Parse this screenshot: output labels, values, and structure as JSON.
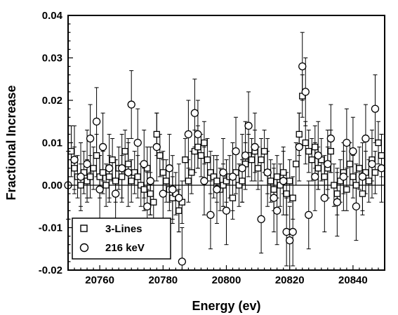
{
  "chart_data": {
    "type": "scatter",
    "xlabel": "Energy (ev)",
    "ylabel": "Fractional Increase",
    "xlim": [
      20750,
      20850
    ],
    "ylim": [
      -0.02,
      0.04
    ],
    "x_ticks": [
      "20760",
      "20780",
      "20800",
      "20820",
      "20840"
    ],
    "y_ticks": [
      "-0.02",
      "-0.01",
      "0.00",
      "0.01",
      "0.02",
      "0.03",
      "0.04"
    ],
    "zero_line": true,
    "legend_position": "bottom-left",
    "series": [
      {
        "name": "3-Lines",
        "marker": "open-square",
        "points": [
          [
            20751,
            0.008,
            0.006
          ],
          [
            20752,
            0.004,
            0.005
          ],
          [
            20753,
            0.002,
            0.005
          ],
          [
            20754,
            0.0,
            0.005
          ],
          [
            20755,
            0.003,
            0.005
          ],
          [
            20756,
            0.001,
            0.005
          ],
          [
            20757,
            0.002,
            0.005
          ],
          [
            20758,
            0.004,
            0.005
          ],
          [
            20759,
            0.007,
            0.005
          ],
          [
            20760,
            0.002,
            0.005
          ],
          [
            20761,
            0.003,
            0.005
          ],
          [
            20762,
            0.0,
            0.005
          ],
          [
            20763,
            0.002,
            0.005
          ],
          [
            20764,
            0.006,
            0.005
          ],
          [
            20765,
            0.001,
            0.005
          ],
          [
            20766,
            0.004,
            0.005
          ],
          [
            20767,
            0.002,
            0.005
          ],
          [
            20768,
            0.008,
            0.005
          ],
          [
            20769,
            0.005,
            0.005
          ],
          [
            20770,
            0.001,
            0.005
          ],
          [
            20771,
            0.003,
            0.005
          ],
          [
            20772,
            0.002,
            0.005
          ],
          [
            20773,
            0.0,
            0.005
          ],
          [
            20774,
            -0.001,
            0.005
          ],
          [
            20775,
            0.004,
            0.005
          ],
          [
            20776,
            -0.002,
            0.005
          ],
          [
            20777,
            -0.004,
            0.005
          ],
          [
            20778,
            0.012,
            0.005
          ],
          [
            20779,
            0.007,
            0.005
          ],
          [
            20780,
            0.003,
            0.005
          ],
          [
            20781,
            0.001,
            0.005
          ],
          [
            20782,
            -0.001,
            0.005
          ],
          [
            20783,
            -0.003,
            0.005
          ],
          [
            20784,
            -0.002,
            0.005
          ],
          [
            20785,
            -0.006,
            0.005
          ],
          [
            20786,
            -0.004,
            0.005
          ],
          [
            20787,
            0.006,
            0.005
          ],
          [
            20788,
            0.001,
            0.005
          ],
          [
            20789,
            0.003,
            0.005
          ],
          [
            20790,
            0.008,
            0.005
          ],
          [
            20791,
            0.009,
            0.005
          ],
          [
            20792,
            0.007,
            0.005
          ],
          [
            20793,
            0.01,
            0.005
          ],
          [
            20794,
            0.006,
            0.005
          ],
          [
            20795,
            0.003,
            0.005
          ],
          [
            20796,
            0.002,
            0.005
          ],
          [
            20797,
            0.001,
            0.005
          ],
          [
            20798,
            -0.001,
            0.005
          ],
          [
            20799,
            0.0,
            0.005
          ],
          [
            20800,
            0.001,
            0.005
          ],
          [
            20801,
            0.002,
            0.005
          ],
          [
            20802,
            -0.003,
            0.005
          ],
          [
            20803,
            0.003,
            0.005
          ],
          [
            20804,
            0.0,
            0.005
          ],
          [
            20805,
            0.001,
            0.005
          ],
          [
            20806,
            0.005,
            0.005
          ],
          [
            20807,
            0.007,
            0.005
          ],
          [
            20808,
            0.006,
            0.005
          ],
          [
            20809,
            0.008,
            0.005
          ],
          [
            20810,
            0.004,
            0.005
          ],
          [
            20811,
            0.006,
            0.005
          ],
          [
            20812,
            0.008,
            0.005
          ],
          [
            20813,
            0.003,
            0.005
          ],
          [
            20814,
            0.001,
            0.005
          ],
          [
            20815,
            -0.001,
            0.005
          ],
          [
            20816,
            0.002,
            0.005
          ],
          [
            20817,
            0.0,
            0.005
          ],
          [
            20818,
            0.003,
            0.005
          ],
          [
            20819,
            -0.002,
            0.005
          ],
          [
            20820,
            0.001,
            0.005
          ],
          [
            20821,
            -0.003,
            0.005
          ],
          [
            20822,
            0.005,
            0.005
          ],
          [
            20823,
            0.012,
            0.005
          ],
          [
            20824,
            0.021,
            0.005
          ],
          [
            20825,
            0.01,
            0.005
          ],
          [
            20826,
            0.008,
            0.005
          ],
          [
            20827,
            0.006,
            0.005
          ],
          [
            20828,
            0.009,
            0.005
          ],
          [
            20829,
            0.004,
            0.005
          ],
          [
            20830,
            0.006,
            0.005
          ],
          [
            20831,
            0.002,
            0.005
          ],
          [
            20832,
            0.004,
            0.005
          ],
          [
            20833,
            0.008,
            0.005
          ],
          [
            20834,
            0.0,
            0.005
          ],
          [
            20835,
            -0.002,
            0.005
          ],
          [
            20836,
            0.001,
            0.005
          ],
          [
            20837,
            0.003,
            0.005
          ],
          [
            20838,
            -0.001,
            0.005
          ],
          [
            20839,
            0.005,
            0.005
          ],
          [
            20840,
            0.002,
            0.005
          ],
          [
            20841,
            0.0,
            0.005
          ],
          [
            20842,
            0.004,
            0.005
          ],
          [
            20843,
            -0.002,
            0.005
          ],
          [
            20844,
            0.003,
            0.005
          ],
          [
            20845,
            0.001,
            0.005
          ],
          [
            20846,
            0.006,
            0.005
          ],
          [
            20847,
            0.003,
            0.005
          ],
          [
            20848,
            0.01,
            0.005
          ],
          [
            20849,
            0.007,
            0.005
          ]
        ]
      },
      {
        "name": "216 keV",
        "marker": "open-circle",
        "points": [
          [
            20750,
            0.0,
            0.008
          ],
          [
            20752,
            0.006,
            0.008
          ],
          [
            20754,
            0.002,
            0.008
          ],
          [
            20756,
            0.005,
            0.008
          ],
          [
            20757,
            0.011,
            0.008
          ],
          [
            20759,
            0.015,
            0.008
          ],
          [
            20760,
            -0.001,
            0.008
          ],
          [
            20761,
            0.009,
            0.008
          ],
          [
            20763,
            0.004,
            0.008
          ],
          [
            20765,
            -0.002,
            0.008
          ],
          [
            20767,
            0.004,
            0.008
          ],
          [
            20769,
            0.003,
            0.008
          ],
          [
            20770,
            0.019,
            0.008
          ],
          [
            20772,
            0.01,
            0.008
          ],
          [
            20774,
            0.005,
            0.008
          ],
          [
            20775,
            -0.005,
            0.008
          ],
          [
            20776,
            0.001,
            0.008
          ],
          [
            20778,
            0.009,
            0.008
          ],
          [
            20780,
            -0.002,
            0.008
          ],
          [
            20782,
            0.004,
            0.008
          ],
          [
            20783,
            -0.001,
            0.008
          ],
          [
            20785,
            -0.003,
            0.008
          ],
          [
            20786,
            -0.018,
            0.008
          ],
          [
            20788,
            0.012,
            0.008
          ],
          [
            20790,
            0.017,
            0.008
          ],
          [
            20791,
            0.012,
            0.008
          ],
          [
            20793,
            0.001,
            0.008
          ],
          [
            20795,
            -0.007,
            0.008
          ],
          [
            20797,
            -0.001,
            0.008
          ],
          [
            20799,
            0.003,
            0.008
          ],
          [
            20800,
            -0.006,
            0.008
          ],
          [
            20802,
            0.002,
            0.008
          ],
          [
            20803,
            0.008,
            0.008
          ],
          [
            20805,
            0.004,
            0.008
          ],
          [
            20806,
            0.007,
            0.008
          ],
          [
            20807,
            0.014,
            0.008
          ],
          [
            20809,
            0.009,
            0.008
          ],
          [
            20811,
            -0.008,
            0.008
          ],
          [
            20813,
            0.003,
            0.008
          ],
          [
            20815,
            -0.003,
            0.008
          ],
          [
            20816,
            -0.006,
            0.008
          ],
          [
            20818,
            0.001,
            0.008
          ],
          [
            20819,
            -0.011,
            0.008
          ],
          [
            20820,
            -0.013,
            0.008
          ],
          [
            20821,
            -0.011,
            0.008
          ],
          [
            20823,
            0.009,
            0.008
          ],
          [
            20824,
            0.028,
            0.008
          ],
          [
            20825,
            0.022,
            0.008
          ],
          [
            20826,
            -0.007,
            0.008
          ],
          [
            20828,
            0.002,
            0.008
          ],
          [
            20829,
            0.007,
            0.008
          ],
          [
            20831,
            -0.003,
            0.008
          ],
          [
            20832,
            0.005,
            0.008
          ],
          [
            20833,
            0.011,
            0.008
          ],
          [
            20835,
            -0.004,
            0.008
          ],
          [
            20837,
            0.002,
            0.008
          ],
          [
            20838,
            0.01,
            0.008
          ],
          [
            20840,
            0.008,
            0.008
          ],
          [
            20841,
            -0.005,
            0.008
          ],
          [
            20843,
            0.002,
            0.008
          ],
          [
            20844,
            0.011,
            0.008
          ],
          [
            20846,
            0.005,
            0.008
          ],
          [
            20847,
            0.018,
            0.008
          ],
          [
            20849,
            0.004,
            0.008
          ]
        ]
      }
    ]
  }
}
